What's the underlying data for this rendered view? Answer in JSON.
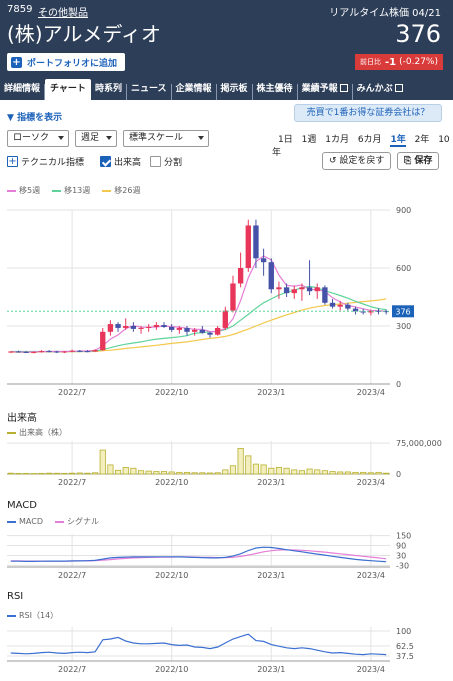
{
  "header": {
    "code": "7859",
    "sector": "その他製品",
    "realtime": "リアルタイム株価 04/21",
    "name": "(株)アルメディオ",
    "price": "376",
    "portfolio_button": "ポートフォリオに追加",
    "change_label": "前日比",
    "change_value": "-1",
    "change_pct": "(-0.27%)"
  },
  "tabs": [
    "詳細情報",
    "チャート",
    "時系列",
    "ニュース",
    "企業情報",
    "掲示板",
    "株主優待",
    "業績予報",
    "みんかぶ"
  ],
  "controls": {
    "indicator_show": "指標を表示",
    "promo": "売買で1番お得な証券会社は？",
    "chart_type": "ローソク",
    "period": "週足",
    "scale": "標準スケール",
    "ranges": [
      "1日",
      "1週",
      "1カ月",
      "6カ月",
      "1年",
      "2年",
      "10年"
    ],
    "active_range": "1年",
    "technical": "テクニカル指標",
    "volume": "出来高",
    "split": "分割",
    "reset": "設定を戻す",
    "save": "保存"
  },
  "colors": {
    "header": "#2d3e58",
    "up": "#e8365a",
    "down": "#4552a8",
    "ma5": "#e57ed8",
    "ma13": "#5fd39a",
    "ma26": "#f2c94c",
    "volume": "#b8b030",
    "macd": "#3b6fd1",
    "signal": "#e57ed8",
    "rsi": "#3b6fd1"
  },
  "chart_data": [
    {
      "type": "candlestick",
      "legend": [
        "移5週",
        "移13週",
        "移26週"
      ],
      "yticks": [
        "900",
        "600",
        "300",
        "0"
      ],
      "ylim": [
        0,
        900
      ],
      "xticks": [
        "2022/7",
        "2022/10",
        "2023/1",
        "2023/4"
      ],
      "current_price_label": "376",
      "candles": [
        [
          165,
          170,
          160,
          168
        ],
        [
          168,
          172,
          162,
          166
        ],
        [
          166,
          170,
          160,
          164
        ],
        [
          164,
          168,
          158,
          166
        ],
        [
          166,
          175,
          162,
          170
        ],
        [
          170,
          176,
          164,
          168
        ],
        [
          168,
          172,
          160,
          165
        ],
        [
          165,
          170,
          160,
          168
        ],
        [
          168,
          178,
          164,
          172
        ],
        [
          172,
          176,
          165,
          170
        ],
        [
          170,
          175,
          164,
          168
        ],
        [
          168,
          180,
          166,
          175
        ],
        [
          175,
          290,
          172,
          270
        ],
        [
          270,
          330,
          250,
          310
        ],
        [
          310,
          320,
          270,
          290
        ],
        [
          290,
          340,
          280,
          300
        ],
        [
          300,
          320,
          270,
          285
        ],
        [
          285,
          300,
          260,
          290
        ],
        [
          290,
          310,
          270,
          295
        ],
        [
          295,
          320,
          280,
          305
        ],
        [
          305,
          320,
          290,
          295
        ],
        [
          295,
          310,
          270,
          280
        ],
        [
          280,
          300,
          260,
          290
        ],
        [
          290,
          300,
          250,
          270
        ],
        [
          270,
          290,
          250,
          280
        ],
        [
          280,
          300,
          260,
          265
        ],
        [
          265,
          270,
          240,
          255
        ],
        [
          255,
          300,
          250,
          290
        ],
        [
          290,
          400,
          280,
          380
        ],
        [
          380,
          560,
          370,
          520
        ],
        [
          520,
          680,
          500,
          600
        ],
        [
          600,
          850,
          580,
          820
        ],
        [
          820,
          850,
          600,
          650
        ],
        [
          650,
          700,
          560,
          630
        ],
        [
          630,
          650,
          470,
          490
        ],
        [
          490,
          530,
          440,
          500
        ],
        [
          500,
          520,
          450,
          470
        ],
        [
          470,
          510,
          440,
          490
        ],
        [
          490,
          520,
          430,
          500
        ],
        [
          500,
          640,
          460,
          480
        ],
        [
          480,
          520,
          440,
          500
        ],
        [
          500,
          510,
          410,
          420
        ],
        [
          420,
          440,
          390,
          400
        ],
        [
          400,
          430,
          380,
          410
        ],
        [
          410,
          420,
          380,
          390
        ],
        [
          390,
          400,
          360,
          375
        ],
        [
          375,
          390,
          360,
          370
        ],
        [
          370,
          385,
          355,
          378
        ],
        [
          378,
          390,
          360,
          377
        ],
        [
          377,
          385,
          360,
          376
        ]
      ],
      "ma5": [
        166,
        166,
        165,
        166,
        167,
        168,
        168,
        168,
        169,
        170,
        171,
        174,
        198,
        232,
        254,
        286,
        302,
        294,
        294,
        295,
        300,
        297,
        294,
        288,
        283,
        283,
        271,
        272,
        288,
        338,
        432,
        550,
        633,
        662,
        642,
        564,
        510,
        506,
        512,
        490,
        488,
        478,
        446,
        424,
        406,
        399,
        389,
        380,
        379,
        376
      ],
      "ma13": [
        168,
        168,
        168,
        168,
        168,
        168,
        168,
        168,
        168,
        168,
        169,
        170,
        178,
        188,
        198,
        206,
        212,
        218,
        226,
        232,
        236,
        240,
        244,
        250,
        262,
        266,
        270,
        272,
        282,
        300,
        330,
        360,
        392,
        420,
        440,
        460,
        474,
        485,
        498,
        505,
        498,
        482,
        470,
        458,
        444,
        428,
        414,
        400,
        390,
        385
      ],
      "ma26": [
        165,
        165,
        165,
        165,
        166,
        166,
        166,
        166,
        167,
        167,
        168,
        168,
        172,
        175,
        179,
        184,
        188,
        192,
        196,
        200,
        205,
        210,
        214,
        218,
        224,
        230,
        236,
        240,
        246,
        256,
        270,
        284,
        300,
        316,
        330,
        344,
        358,
        370,
        382,
        392,
        400,
        406,
        410,
        414,
        418,
        422,
        426,
        430,
        434,
        440
      ]
    },
    {
      "type": "bar",
      "title": "出来高",
      "legend": [
        "出来高（株）"
      ],
      "yticks": [
        "75,000,000",
        "0"
      ],
      "ylim": [
        0,
        80000000
      ],
      "values": [
        2000000,
        1500000,
        1500000,
        1200000,
        1500000,
        2000000,
        1800000,
        1500000,
        2000000,
        2500000,
        2000000,
        3000000,
        58000000,
        22000000,
        9000000,
        16000000,
        14000000,
        8000000,
        7000000,
        6000000,
        6000000,
        5000000,
        4000000,
        4000000,
        3000000,
        3000000,
        2500000,
        3000000,
        10000000,
        20000000,
        62000000,
        44000000,
        24000000,
        22000000,
        14000000,
        16000000,
        14000000,
        10000000,
        8000000,
        12000000,
        10000000,
        8000000,
        6000000,
        5000000,
        5000000,
        4000000,
        4000000,
        3000000,
        4000000,
        2000000
      ]
    },
    {
      "type": "line",
      "title": "MACD",
      "legend": [
        "MACD",
        "シグナル"
      ],
      "yticks": [
        "150",
        "90",
        "30",
        "-30"
      ],
      "ylim": [
        -40,
        160
      ],
      "macd": [
        -5,
        -5,
        -6,
        -6,
        -5,
        -4,
        -4,
        -4,
        -3,
        -3,
        -2,
        0,
        8,
        15,
        18,
        20,
        21,
        21,
        21,
        22,
        22,
        22,
        21,
        20,
        18,
        17,
        15,
        15,
        18,
        26,
        40,
        60,
        75,
        80,
        78,
        72,
        65,
        58,
        52,
        45,
        38,
        32,
        25,
        18,
        12,
        6,
        2,
        -2,
        -5,
        -8
      ],
      "signal": [
        -3,
        -3,
        -4,
        -4,
        -4,
        -4,
        -4,
        -4,
        -4,
        -3,
        -3,
        -2,
        1,
        5,
        9,
        12,
        15,
        17,
        18,
        19,
        20,
        20,
        21,
        21,
        20,
        19,
        18,
        17,
        17,
        19,
        24,
        32,
        42,
        52,
        59,
        63,
        64,
        63,
        61,
        58,
        54,
        50,
        45,
        40,
        35,
        30,
        25,
        20,
        15,
        10
      ]
    },
    {
      "type": "line",
      "title": "RSI",
      "legend": [
        "RSI（14）"
      ],
      "yticks": [
        "100",
        "62.5",
        "37.5"
      ],
      "ylim": [
        25,
        110
      ],
      "values": [
        45,
        44,
        43,
        44,
        46,
        47,
        45,
        44,
        46,
        47,
        46,
        48,
        78,
        80,
        84,
        75,
        70,
        68,
        68,
        69,
        70,
        66,
        64,
        65,
        60,
        59,
        56,
        60,
        70,
        80,
        86,
        92,
        76,
        74,
        66,
        62,
        58,
        56,
        58,
        56,
        52,
        48,
        45,
        46,
        44,
        42,
        41,
        43,
        42,
        41
      ]
    }
  ]
}
